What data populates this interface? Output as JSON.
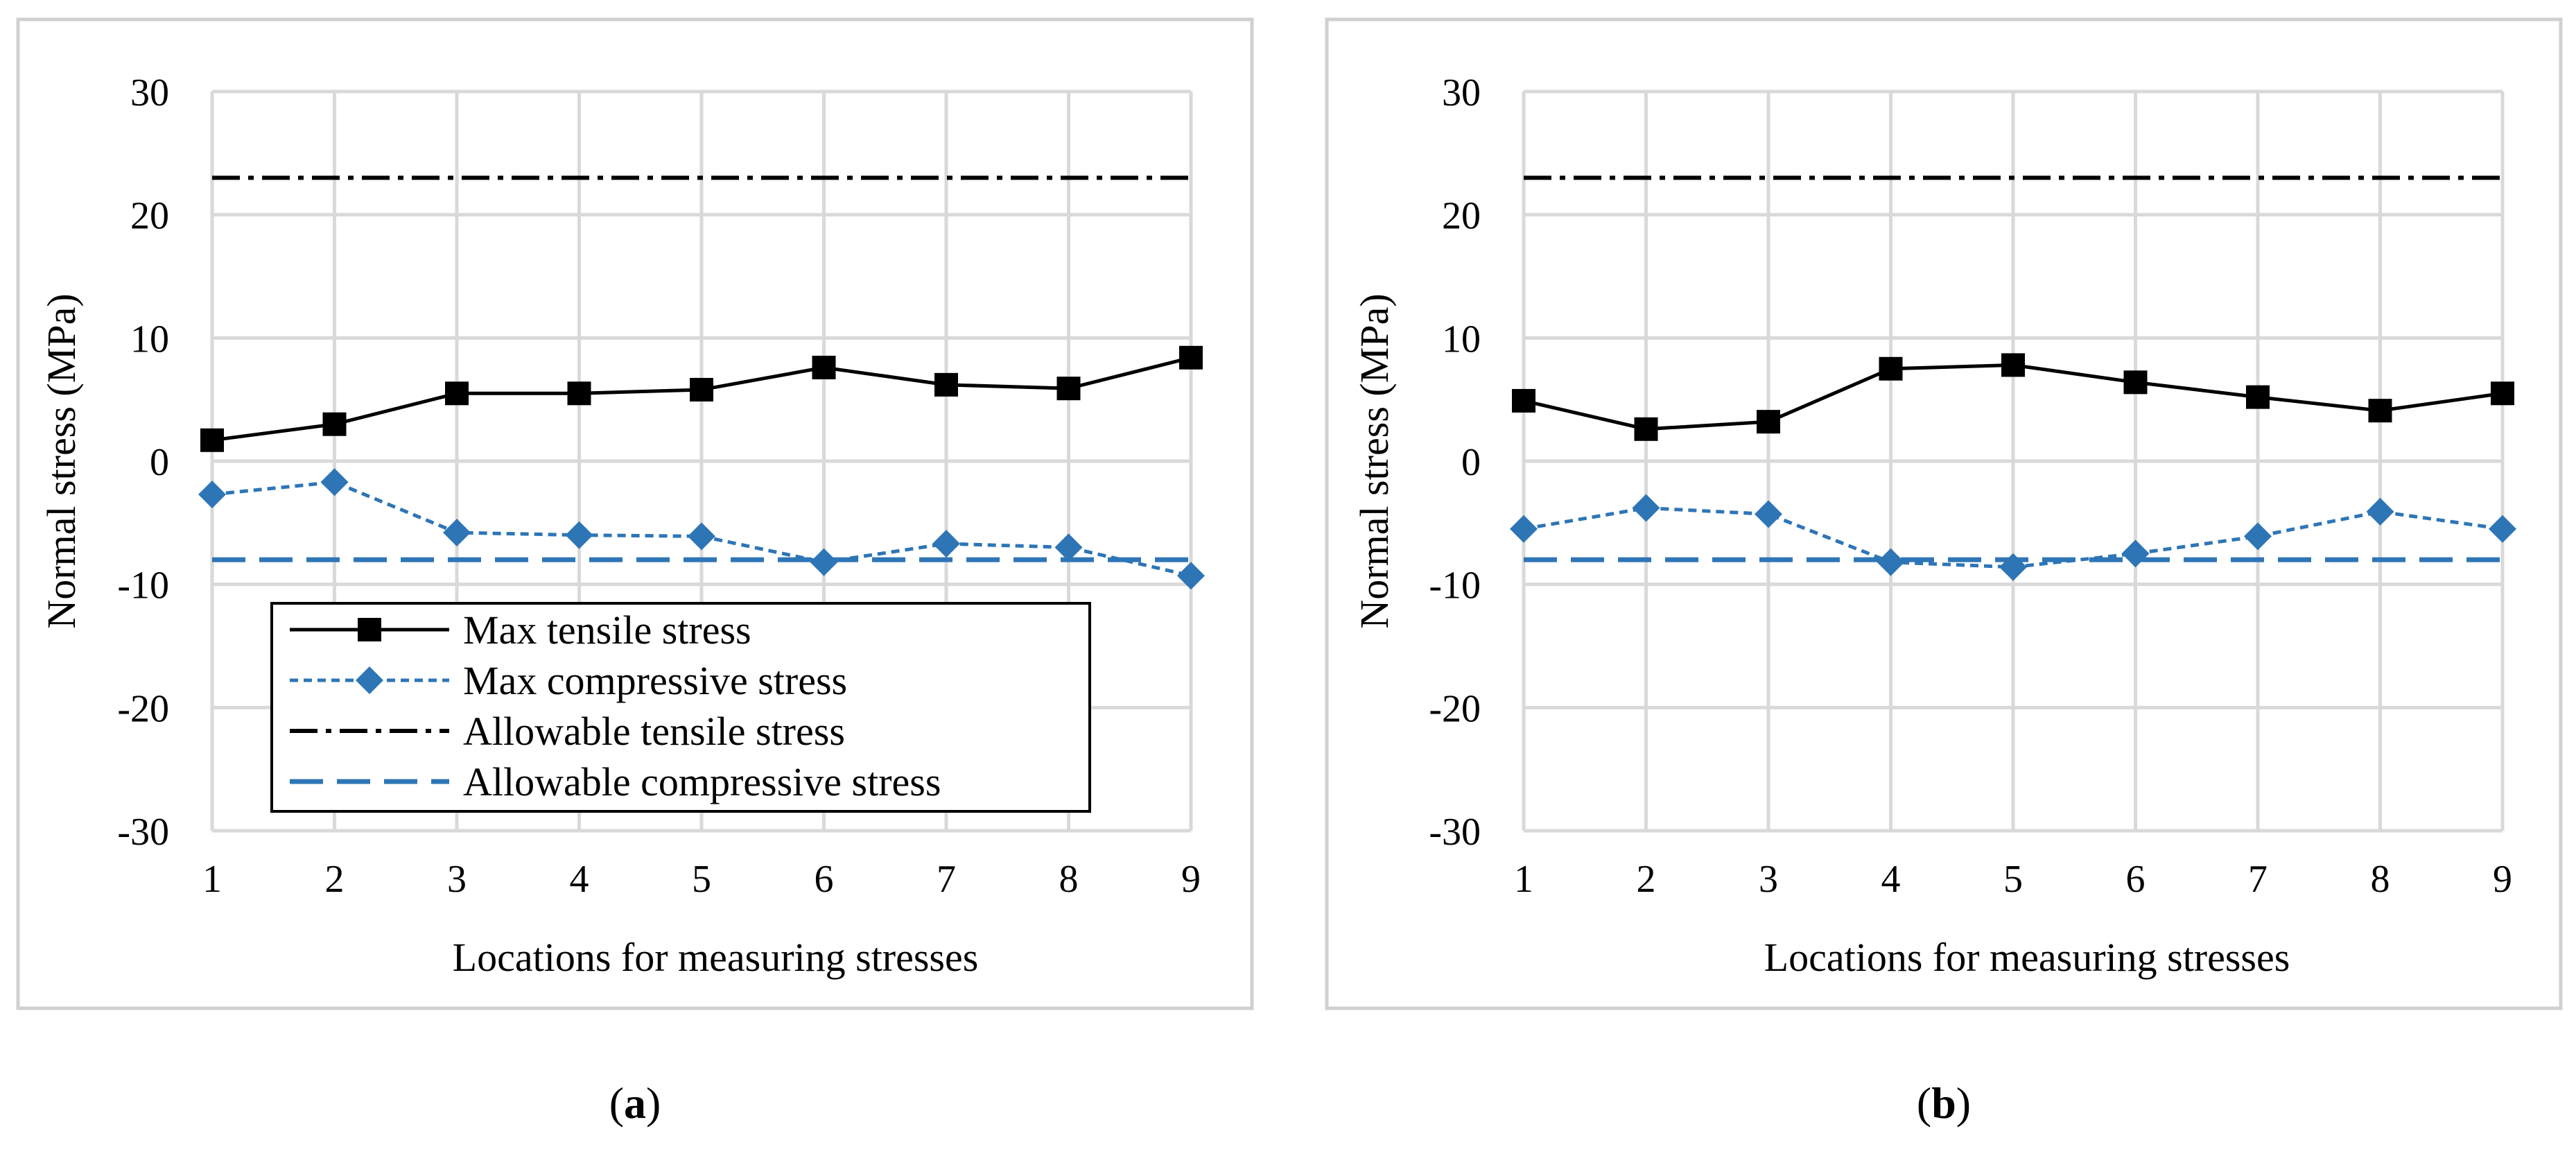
{
  "chart_data": [
    {
      "type": "line",
      "panel_label": "a",
      "xlabel": "Locations for measuring stresses",
      "ylabel": "Normal stress (MPa)",
      "ylim": [
        -30,
        30
      ],
      "yticks": [
        "30",
        "20",
        "10",
        "0",
        "-10",
        "-20",
        "-30"
      ],
      "categories": [
        "1",
        "2",
        "3",
        "4",
        "5",
        "6",
        "7",
        "8",
        "9"
      ],
      "grid": true,
      "legend_position": "bottom-left",
      "series": [
        {
          "name": "Max tensile stress",
          "style": "solid-square",
          "color": "#000000",
          "values": [
            1.7,
            3.0,
            5.5,
            5.5,
            5.8,
            7.6,
            6.2,
            5.9,
            8.4
          ]
        },
        {
          "name": "Max compressive stress",
          "style": "dotted-diamond",
          "color": "#2e75b6",
          "values": [
            -2.7,
            -1.7,
            -5.8,
            -6.0,
            -6.1,
            -8.2,
            -6.7,
            -7.0,
            -9.3
          ]
        },
        {
          "name": "Allowable tensile stress",
          "style": "dash-dot",
          "color": "#000000",
          "values": [
            23,
            23,
            23,
            23,
            23,
            23,
            23,
            23,
            23
          ]
        },
        {
          "name": "Allowable compressive stress",
          "style": "long-dash",
          "color": "#2e75b6",
          "values": [
            -8,
            -8,
            -8,
            -8,
            -8,
            -8,
            -8,
            -8,
            -8
          ]
        }
      ]
    },
    {
      "type": "line",
      "panel_label": "b",
      "xlabel": "Locations for measuring stresses",
      "ylabel": "Normal stress (MPa)",
      "ylim": [
        -30,
        30
      ],
      "yticks": [
        "30",
        "20",
        "10",
        "0",
        "-10",
        "-20",
        "-30"
      ],
      "categories": [
        "1",
        "2",
        "3",
        "4",
        "5",
        "6",
        "7",
        "8",
        "9"
      ],
      "grid": true,
      "legend_position": "none",
      "series": [
        {
          "name": "Max tensile stress",
          "style": "solid-square",
          "color": "#000000",
          "values": [
            4.9,
            2.6,
            3.2,
            7.5,
            7.8,
            6.4,
            5.2,
            4.1,
            5.5
          ]
        },
        {
          "name": "Max compressive stress",
          "style": "dotted-diamond",
          "color": "#2e75b6",
          "values": [
            -5.5,
            -3.8,
            -4.3,
            -8.2,
            -8.6,
            -7.5,
            -6.1,
            -4.1,
            -5.5
          ]
        },
        {
          "name": "Allowable tensile stress",
          "style": "dash-dot",
          "color": "#000000",
          "values": [
            23,
            23,
            23,
            23,
            23,
            23,
            23,
            23,
            23
          ]
        },
        {
          "name": "Allowable compressive stress",
          "style": "long-dash",
          "color": "#2e75b6",
          "values": [
            -8,
            -8,
            -8,
            -8,
            -8,
            -8,
            -8,
            -8,
            -8
          ]
        }
      ]
    }
  ],
  "captions": [
    {
      "open": "(",
      "label": "a",
      "close": ")"
    },
    {
      "open": "(",
      "label": "b",
      "close": ")"
    }
  ]
}
